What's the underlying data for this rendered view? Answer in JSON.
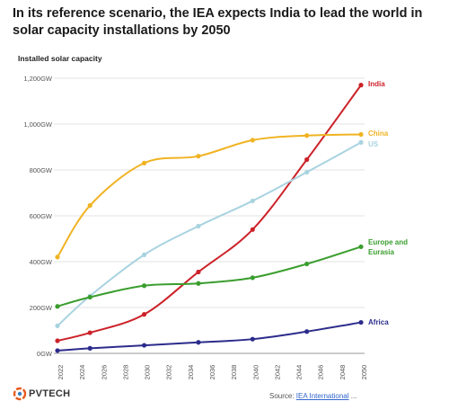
{
  "chart_data": {
    "type": "line",
    "title": "In its reference scenario, the IEA expects India to lead the world in solar capacity installations by 2050",
    "subtitle": "Installed solar capacity",
    "x_ticks": [
      "2022",
      "2024",
      "2026",
      "2028",
      "2030",
      "2032",
      "2034",
      "2036",
      "2038",
      "2040",
      "2042",
      "2044",
      "2046",
      "2048",
      "2050"
    ],
    "y_ticks": [
      {
        "value": 0,
        "label": "0GW"
      },
      {
        "value": 200,
        "label": "200GW"
      },
      {
        "value": 400,
        "label": "400GW"
      },
      {
        "value": 600,
        "label": "600GW"
      },
      {
        "value": 800,
        "label": "800GW"
      },
      {
        "value": 1000,
        "label": "1,000GW"
      },
      {
        "value": 1200,
        "label": "1,200GW"
      }
    ],
    "xlim": [
      2022,
      2050
    ],
    "ylim": [
      0,
      1200
    ],
    "grid": "horizontal",
    "series": [
      {
        "name": "India",
        "color": "#cc2229",
        "x": [
          2022,
          2025,
          2030,
          2035,
          2040,
          2045,
          2050
        ],
        "y": [
          55,
          90,
          170,
          355,
          540,
          845,
          1170
        ]
      },
      {
        "name": "China",
        "color": "#f0b323",
        "x": [
          2022,
          2025,
          2030,
          2035,
          2040,
          2045,
          2050
        ],
        "y": [
          420,
          645,
          830,
          860,
          930,
          950,
          955
        ]
      },
      {
        "name": "US",
        "color": "#a9d3e0",
        "x": [
          2022,
          2025,
          2030,
          2035,
          2040,
          2045,
          2050
        ],
        "y": [
          120,
          250,
          430,
          555,
          665,
          790,
          920
        ]
      },
      {
        "name": "Europe and Eurasia",
        "color": "#3a9e2e",
        "x": [
          2022,
          2025,
          2030,
          2035,
          2040,
          2045,
          2050
        ],
        "y": [
          205,
          245,
          295,
          305,
          330,
          390,
          465
        ]
      },
      {
        "name": "Africa",
        "color": "#2c2c8c",
        "x": [
          2022,
          2025,
          2030,
          2035,
          2040,
          2045,
          2050
        ],
        "y": [
          12,
          22,
          35,
          48,
          62,
          95,
          135
        ]
      }
    ]
  },
  "branding": {
    "logo_text": "PVTECH"
  },
  "source": {
    "prefix": "Source: ",
    "link": "IEA International",
    "suffix": " ..."
  }
}
